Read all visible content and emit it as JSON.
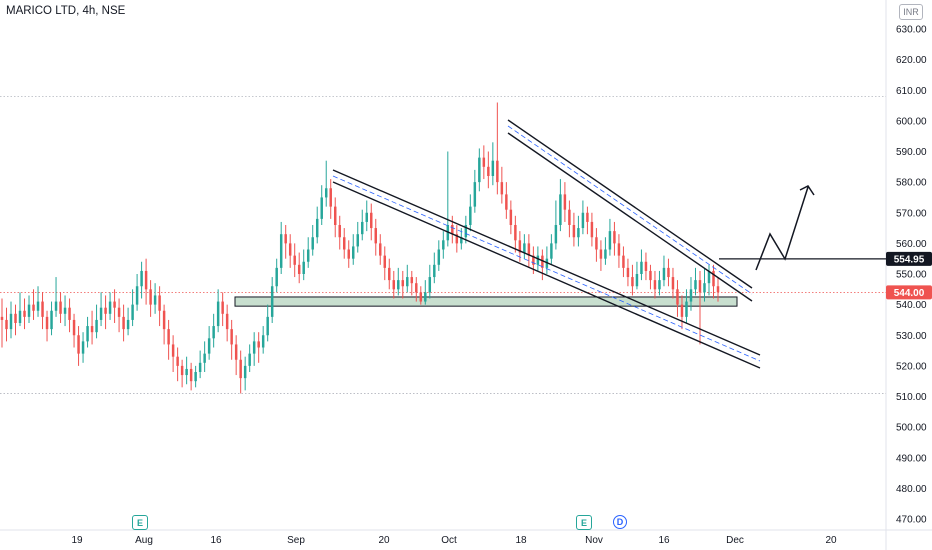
{
  "header": {
    "title": "MARICO LTD, 4h, NSE",
    "unit": "INR"
  },
  "events": [
    {
      "type": "E",
      "label": "E",
      "date": "Aug"
    },
    {
      "type": "E",
      "label": "E",
      "date": "Nov"
    },
    {
      "type": "D",
      "label": "D",
      "date": "Nov"
    }
  ],
  "colors": {
    "up": "#26a69a",
    "down": "#ef5350",
    "line": "#131722",
    "channel_mid": "#2962ff",
    "zone_fill": "#c8dfcf",
    "last_price_bg": "#ef5350",
    "level_bg": "#131722"
  },
  "chart_data": {
    "type": "candlestick",
    "title": "MARICO LTD, 4h, NSE",
    "y_axis": {
      "range": [
        467,
        636
      ],
      "ticks": [
        630,
        620,
        610,
        600,
        590,
        580,
        570,
        560,
        550,
        540,
        530,
        520,
        510,
        500,
        490,
        480,
        470
      ],
      "tick_labels": [
        "630.00",
        "620.00",
        "610.00",
        "600.00",
        "590.00",
        "580.00",
        "570.00",
        "560.00",
        "550.00",
        "540.00",
        "530.00",
        "520.00",
        "510.00",
        "500.00",
        "490.00",
        "480.00",
        "470.00"
      ],
      "unit": "INR"
    },
    "x_axis": {
      "tick_labels": [
        "19",
        "Aug",
        "16",
        "Sep",
        "20",
        "Oct",
        "18",
        "Nov",
        "16",
        "Dec",
        "20"
      ]
    },
    "price_labels": {
      "level": "554.95",
      "last": "544.00"
    },
    "dotted_levels": [
      608,
      511,
      544
    ],
    "support_zone": [
      539.5,
      542.5
    ],
    "breakout_level": 554.95,
    "candles": [
      [
        536,
        535,
        542,
        526
      ],
      [
        535,
        532,
        539,
        528
      ],
      [
        532,
        537,
        541,
        529
      ],
      [
        537,
        534,
        540,
        530
      ],
      [
        534,
        538,
        544,
        533
      ],
      [
        538,
        536,
        542,
        532
      ],
      [
        536,
        540,
        543,
        534
      ],
      [
        540,
        538,
        545,
        535
      ],
      [
        538,
        541,
        546,
        536
      ],
      [
        541,
        536,
        544,
        532
      ],
      [
        536,
        532,
        538,
        528
      ],
      [
        532,
        538,
        541,
        530
      ],
      [
        538,
        541,
        549,
        536
      ],
      [
        541,
        537,
        544,
        534
      ],
      [
        537,
        539,
        543,
        533
      ],
      [
        539,
        535,
        542,
        531
      ],
      [
        535,
        530,
        537,
        526
      ],
      [
        530,
        524,
        533,
        520
      ],
      [
        524,
        528,
        531,
        521
      ],
      [
        528,
        533,
        536,
        526
      ],
      [
        533,
        531,
        538,
        527
      ],
      [
        531,
        535,
        540,
        529
      ],
      [
        535,
        539,
        544,
        533
      ],
      [
        539,
        537,
        543,
        532
      ],
      [
        537,
        541,
        544,
        535
      ],
      [
        541,
        539,
        545,
        534
      ],
      [
        539,
        536,
        542,
        531
      ],
      [
        536,
        532,
        540,
        528
      ],
      [
        532,
        535,
        539,
        530
      ],
      [
        535,
        540,
        545,
        533
      ],
      [
        540,
        546,
        550,
        538
      ],
      [
        546,
        551,
        554,
        542
      ],
      [
        551,
        545,
        555,
        540
      ],
      [
        545,
        540,
        548,
        536
      ],
      [
        540,
        543,
        547,
        537
      ],
      [
        543,
        538,
        546,
        533
      ],
      [
        538,
        532,
        540,
        527
      ],
      [
        532,
        527,
        535,
        522
      ],
      [
        527,
        523,
        530,
        518
      ],
      [
        523,
        520,
        526,
        515
      ],
      [
        520,
        517,
        522,
        513
      ],
      [
        517,
        519,
        523,
        514
      ],
      [
        519,
        515,
        521,
        512
      ],
      [
        515,
        518,
        520,
        513
      ],
      [
        518,
        521,
        525,
        516
      ],
      [
        521,
        524,
        528,
        518
      ],
      [
        524,
        529,
        533,
        522
      ],
      [
        529,
        533,
        537,
        526
      ],
      [
        533,
        541,
        545,
        531
      ],
      [
        541,
        537,
        544,
        533
      ],
      [
        537,
        532,
        540,
        528
      ],
      [
        532,
        527,
        535,
        522
      ],
      [
        527,
        522,
        530,
        517
      ],
      [
        522,
        516,
        525,
        511
      ],
      [
        516,
        520,
        523,
        512
      ],
      [
        520,
        524,
        527,
        518
      ],
      [
        524,
        528,
        531,
        520
      ],
      [
        528,
        526,
        531,
        521
      ],
      [
        526,
        530,
        533,
        524
      ],
      [
        530,
        536,
        540,
        528
      ],
      [
        536,
        546,
        549,
        534
      ],
      [
        546,
        552,
        555,
        544
      ],
      [
        552,
        563,
        567,
        550
      ],
      [
        563,
        560,
        566,
        555
      ],
      [
        560,
        556,
        563,
        552
      ],
      [
        556,
        553,
        560,
        549
      ],
      [
        553,
        550,
        557,
        547
      ],
      [
        550,
        554,
        558,
        548
      ],
      [
        554,
        558,
        562,
        552
      ],
      [
        558,
        562,
        566,
        556
      ],
      [
        562,
        568,
        572,
        560
      ],
      [
        568,
        575,
        579,
        566
      ],
      [
        575,
        578,
        587,
        572
      ],
      [
        578,
        572,
        581,
        568
      ],
      [
        572,
        566,
        575,
        562
      ],
      [
        566,
        562,
        569,
        558
      ],
      [
        562,
        558,
        565,
        555
      ],
      [
        558,
        555,
        561,
        552
      ],
      [
        555,
        559,
        563,
        553
      ],
      [
        559,
        563,
        567,
        557
      ],
      [
        563,
        567,
        571,
        561
      ],
      [
        567,
        570,
        574,
        564
      ],
      [
        570,
        565,
        573,
        561
      ],
      [
        565,
        560,
        568,
        556
      ],
      [
        560,
        556,
        563,
        553
      ],
      [
        556,
        552,
        559,
        548
      ],
      [
        552,
        548,
        555,
        545
      ],
      [
        548,
        545,
        551,
        542
      ],
      [
        545,
        548,
        552,
        543
      ],
      [
        548,
        546,
        551,
        542
      ],
      [
        546,
        549,
        553,
        544
      ],
      [
        549,
        547,
        551,
        543
      ],
      [
        547,
        544,
        549,
        541
      ],
      [
        544,
        541,
        546,
        540
      ],
      [
        541,
        544,
        548,
        540
      ],
      [
        544,
        549,
        553,
        542
      ],
      [
        549,
        553,
        557,
        547
      ],
      [
        553,
        558,
        561,
        551
      ],
      [
        558,
        561,
        564,
        555
      ],
      [
        561,
        566,
        590,
        559
      ],
      [
        566,
        563,
        569,
        560
      ],
      [
        563,
        560,
        566,
        557
      ],
      [
        560,
        562,
        565,
        558
      ],
      [
        562,
        566,
        569,
        560
      ],
      [
        566,
        572,
        576,
        564
      ],
      [
        572,
        580,
        584,
        570
      ],
      [
        580,
        588,
        591,
        577
      ],
      [
        588,
        585,
        592,
        581
      ],
      [
        585,
        582,
        590,
        578
      ],
      [
        582,
        587,
        593,
        579
      ],
      [
        587,
        580,
        606,
        576
      ],
      [
        580,
        576,
        585,
        573
      ],
      [
        576,
        571,
        580,
        568
      ],
      [
        571,
        566,
        574,
        563
      ],
      [
        566,
        561,
        569,
        557
      ],
      [
        561,
        557,
        564,
        554
      ],
      [
        557,
        560,
        563,
        555
      ],
      [
        560,
        556,
        563,
        552
      ],
      [
        556,
        553,
        559,
        550
      ],
      [
        553,
        556,
        559,
        551
      ],
      [
        556,
        552,
        558,
        548
      ],
      [
        552,
        555,
        559,
        550
      ],
      [
        555,
        560,
        563,
        553
      ],
      [
        560,
        566,
        574,
        558
      ],
      [
        566,
        576,
        581,
        564
      ],
      [
        576,
        571,
        580,
        567
      ],
      [
        571,
        566,
        574,
        562
      ],
      [
        566,
        562,
        570,
        559
      ],
      [
        562,
        565,
        569,
        559
      ],
      [
        565,
        570,
        574,
        563
      ],
      [
        570,
        567,
        572,
        563
      ],
      [
        567,
        562,
        570,
        559
      ],
      [
        562,
        558,
        565,
        554
      ],
      [
        558,
        555,
        561,
        551
      ],
      [
        555,
        558,
        562,
        553
      ],
      [
        558,
        564,
        568,
        556
      ],
      [
        564,
        560,
        567,
        556
      ],
      [
        560,
        556,
        563,
        552
      ],
      [
        556,
        552,
        559,
        549
      ],
      [
        552,
        549,
        555,
        546
      ],
      [
        549,
        546,
        553,
        543
      ],
      [
        546,
        550,
        554,
        545
      ],
      [
        550,
        554,
        558,
        548
      ],
      [
        554,
        551,
        557,
        548
      ],
      [
        551,
        548,
        553,
        545
      ],
      [
        548,
        545,
        551,
        542
      ],
      [
        545,
        548,
        551,
        543
      ],
      [
        548,
        552,
        556,
        546
      ],
      [
        552,
        549,
        555,
        546
      ],
      [
        549,
        545,
        552,
        542
      ],
      [
        545,
        540,
        548,
        536
      ],
      [
        540,
        536,
        543,
        532
      ],
      [
        536,
        541,
        545,
        534
      ],
      [
        541,
        545,
        549,
        538
      ],
      [
        545,
        548,
        552,
        543
      ],
      [
        548,
        544,
        551,
        527
      ],
      [
        544,
        547,
        552,
        541
      ],
      [
        547,
        551,
        553,
        543
      ],
      [
        551,
        546,
        553,
        542
      ],
      [
        546,
        544,
        549,
        541
      ]
    ]
  }
}
